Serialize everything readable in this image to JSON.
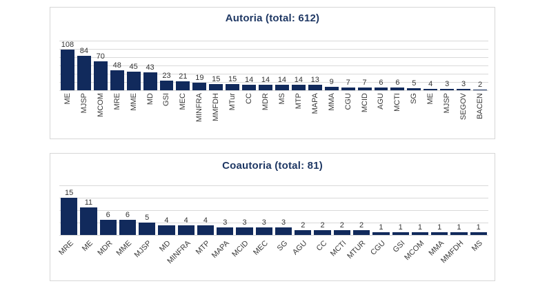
{
  "window": {
    "background": "#ffffff",
    "panel_border": "#d6d6d6",
    "gridline_color": "#d9d9d9"
  },
  "chart_data": [
    {
      "type": "bar",
      "title": "Autoria (total: 612)",
      "total": 612,
      "categories": [
        "ME",
        "MJSP",
        "MCOM",
        "MRE",
        "MME",
        "MD",
        "GSI",
        "MEC",
        "MINFRA",
        "MMFDH",
        "MTur",
        "CC",
        "MDR",
        "MS",
        "MTP",
        "MAPA",
        "MMA",
        "CGU",
        "MCID",
        "AGU",
        "MCTI",
        "SG",
        "ME",
        "MJSP",
        "SEGOV",
        "BACEN"
      ],
      "values": [
        108,
        84,
        70,
        48,
        45,
        43,
        23,
        21,
        19,
        15,
        15,
        14,
        14,
        14,
        14,
        13,
        9,
        7,
        7,
        6,
        6,
        5,
        4,
        3,
        3,
        2
      ],
      "ylim": [
        0,
        120
      ],
      "grid_step": 20,
      "grid": true,
      "legend": false,
      "data_labels": true,
      "bar_color": "#112a5c",
      "title_color": "#1f3864",
      "category_label_rotation": 90
    },
    {
      "type": "bar",
      "title": "Coautoria (total: 81)",
      "total": 81,
      "categories": [
        "MRE",
        "ME",
        "MDR",
        "MME",
        "MJSP",
        "MD",
        "MINFRA",
        "MTP",
        "MAPA",
        "MCID",
        "MEC",
        "SG",
        "AGU",
        "CC",
        "MCTI",
        "MTUR",
        "CGU",
        "GSI",
        "MCOM",
        "MMA",
        "MMFDH",
        "MS"
      ],
      "values": [
        15,
        11,
        6,
        6,
        5,
        4,
        4,
        4,
        3,
        3,
        3,
        3,
        2,
        2,
        2,
        2,
        1,
        1,
        1,
        1,
        1,
        1
      ],
      "ylim": [
        0,
        20
      ],
      "grid_step": 5,
      "grid": true,
      "legend": false,
      "data_labels": true,
      "bar_color": "#112a5c",
      "title_color": "#1f3864",
      "category_label_rotation": 45
    }
  ]
}
